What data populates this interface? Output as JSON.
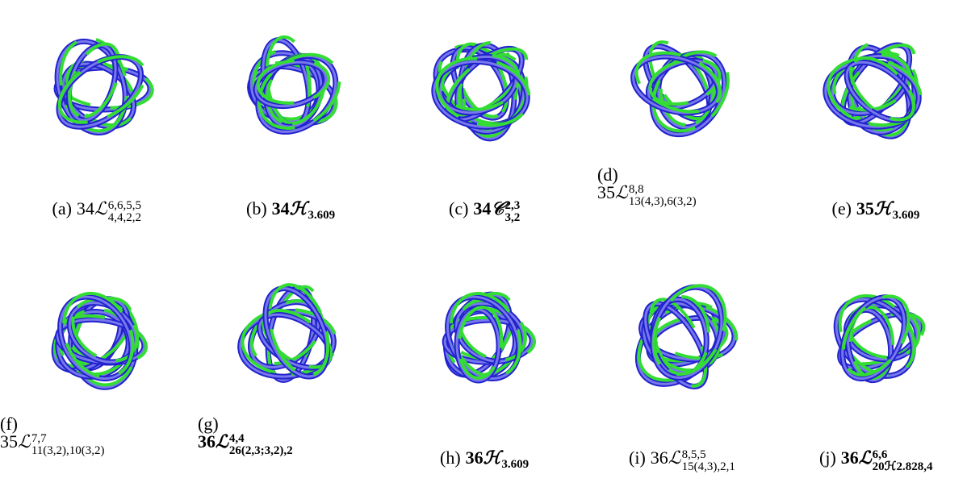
{
  "panels": [
    {
      "label": "(a)",
      "prefix": "34",
      "symbol": "ℒ",
      "superscript": "6,6,5,5",
      "subscript": "4,4,2,2",
      "bold": false,
      "split": false
    },
    {
      "label": "(b)",
      "prefix": "34",
      "symbol": "ℋ",
      "subscript": "3.609",
      "bold": true,
      "split": false
    },
    {
      "label": "(c)",
      "prefix": "34",
      "symbol": "𝒞",
      "superscript": "2,3",
      "subscript": "3,2",
      "bold": true,
      "split": false
    },
    {
      "label": "(d)",
      "prefix": "35",
      "symbol": "ℒ",
      "superscript": "8,8",
      "subscript": "13(4,3),6(3,2)",
      "bold": false,
      "split": true
    },
    {
      "label": "(e)",
      "prefix": "35",
      "symbol": "ℋ",
      "subscript": "3.609",
      "bold": true,
      "split": false
    },
    {
      "label": "(f)",
      "prefix": "35",
      "symbol": "ℒ",
      "superscript": "7,7",
      "subscript": "11(3,2),10(3,2)",
      "bold": false,
      "split": true
    },
    {
      "label": "(g)",
      "prefix": "36",
      "symbol": "ℒ",
      "superscript": "4,4",
      "subscript": "26(2,3;3,2),2",
      "bold": true,
      "split": true
    },
    {
      "label": "(h)",
      "prefix": "36",
      "symbol": "ℋ",
      "subscript": "3.609",
      "bold": true,
      "split": false
    },
    {
      "label": "(i)",
      "prefix": "36",
      "symbol": "ℒ",
      "superscript": "8,5,5",
      "subscript": "15(4,3),2,1",
      "bold": false,
      "split": false
    },
    {
      "label": "(j)",
      "prefix": "36",
      "symbol": "ℒ",
      "superscript": "6,6",
      "subscript": "20ℋ2.828,4",
      "bold": true,
      "split": false
    }
  ]
}
